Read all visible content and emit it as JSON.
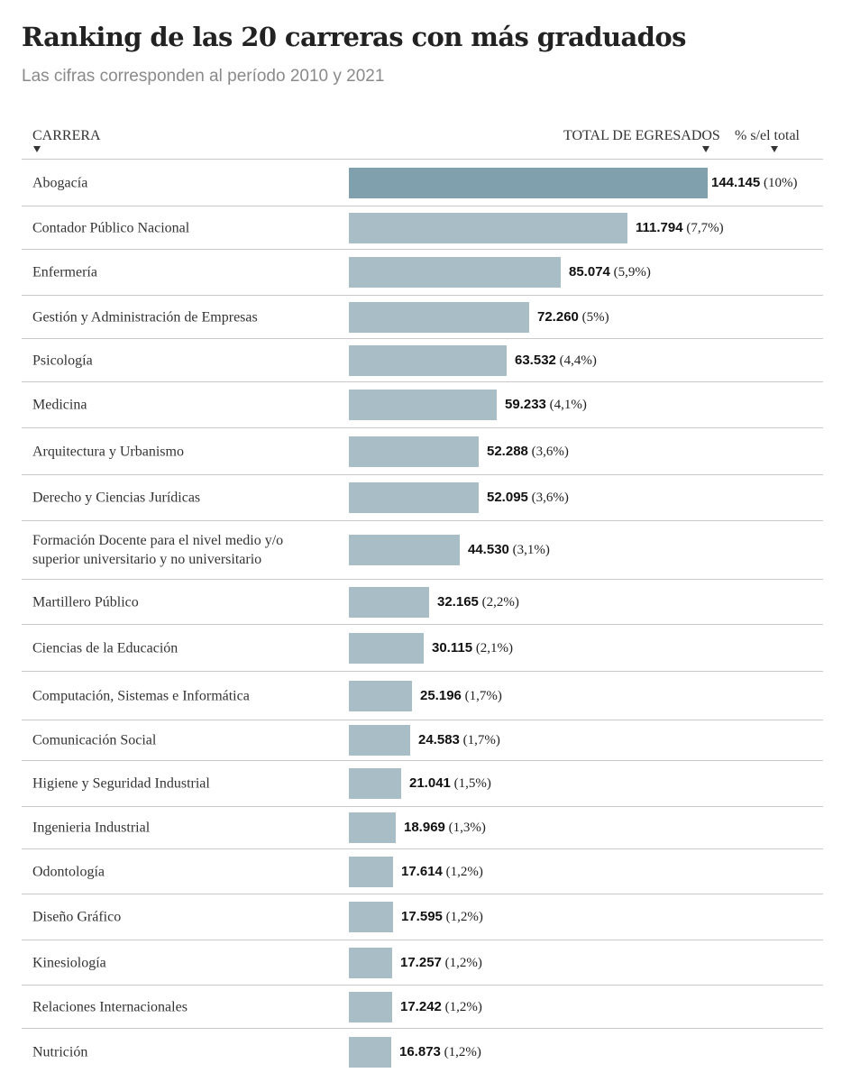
{
  "title": "Ranking de las 20 carreras con más graduados",
  "subtitle": "Las cifras corresponden al período 2010 y 2021",
  "headers": {
    "carrera": "CARRERA",
    "total": "TOTAL DE EGRESADOS",
    "pct": "% s/el total"
  },
  "colors": {
    "bar": "#a9bdc6",
    "bar_highlight": "#80a0ad"
  },
  "chart_data": {
    "type": "bar",
    "orientation": "horizontal",
    "categories": [
      "Abogacía",
      "Contador Público Nacional",
      "Enfermería",
      "Gestión y Administración de Empresas",
      "Psicología",
      "Medicina",
      "Arquitectura y Urbanismo",
      "Derecho y Ciencias Jurídicas",
      "Formación Docente para el nivel medio y/o superior universitario y no universitario",
      "Martillero Público",
      "Ciencias de la Educación",
      "Computación, Sistemas e Informática",
      "Comunicación Social",
      "Higiene y Seguridad Industrial",
      "Ingenieria Industrial",
      "Odontología",
      "Diseño Gráfico",
      "Kinesiología",
      "Relaciones Internacionales",
      "Nutrición"
    ],
    "values": [
      144145,
      111794,
      85074,
      72260,
      63532,
      59233,
      52288,
      52095,
      44530,
      32165,
      30115,
      25196,
      24583,
      21041,
      18969,
      17614,
      17595,
      17257,
      17242,
      16873
    ],
    "value_labels": [
      "144.145",
      "111.794",
      "85.074",
      "72.260",
      "63.532",
      "59.233",
      "52.288",
      "52.095",
      "44.530",
      "32.165",
      "30.115",
      "25.196",
      "24.583",
      "21.041",
      "18.969",
      "17.614",
      "17.595",
      "17.257",
      "17.242",
      "16.873"
    ],
    "percent_labels": [
      "(10%)",
      "(7,7%)",
      "(5,9%)",
      "(5%)",
      "(4,4%)",
      "(4,1%)",
      "(3,6%)",
      "(3,6%)",
      "(3,1%)",
      "(2,2%)",
      "(2,1%)",
      "(1,7%)",
      "(1,7%)",
      "(1,5%)",
      "(1,3%)",
      "(1,2%)",
      "(1,2%)",
      "(1,2%)",
      "(1,2%)",
      "(1,2%)"
    ],
    "title": "Ranking de las 20 carreras con más graduados",
    "xlabel": "TOTAL DE EGRESADOS",
    "ylabel": "CARRERA",
    "xlim": [
      0,
      144145
    ],
    "grid": false
  }
}
